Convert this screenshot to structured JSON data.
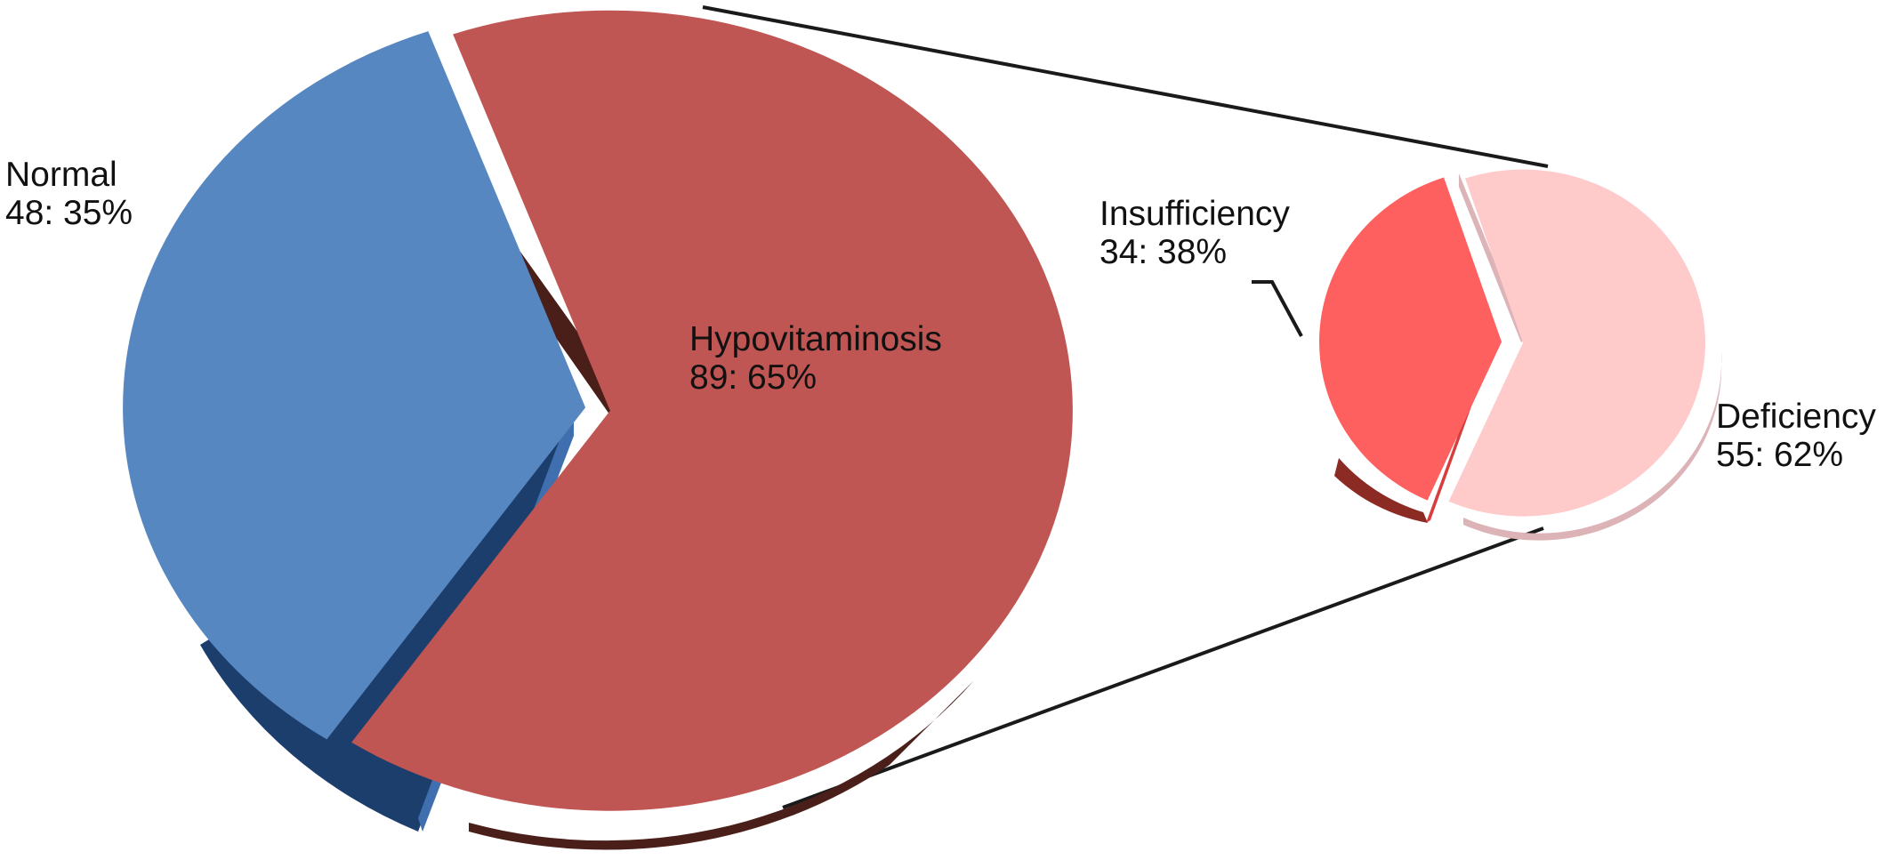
{
  "chart_data": [
    {
      "type": "pie",
      "title": "",
      "categories": [
        "Normal",
        "Hypovitaminosis"
      ],
      "values": [
        48,
        89
      ],
      "percent_labels": [
        "35%",
        "65%"
      ],
      "labels": [
        "Normal",
        "Hypovitaminosis"
      ],
      "value_labels": [
        "48: 35%",
        "89: 65%"
      ],
      "colors": [
        "#5787c1",
        "#c05653"
      ],
      "exploded": true,
      "three_d": true
    },
    {
      "type": "pie",
      "title": "",
      "breakdown_of": "Hypovitaminosis",
      "categories": [
        "Insufficiency",
        "Deficiency"
      ],
      "values": [
        34,
        55
      ],
      "percent_labels": [
        "38%",
        "62%"
      ],
      "labels": [
        "Insufficiency",
        "Deficiency"
      ],
      "value_labels": [
        "34: 38%",
        "55: 62%"
      ],
      "colors": [
        "#fe6060",
        "#fecaca"
      ],
      "exploded": true,
      "three_d": true
    }
  ]
}
